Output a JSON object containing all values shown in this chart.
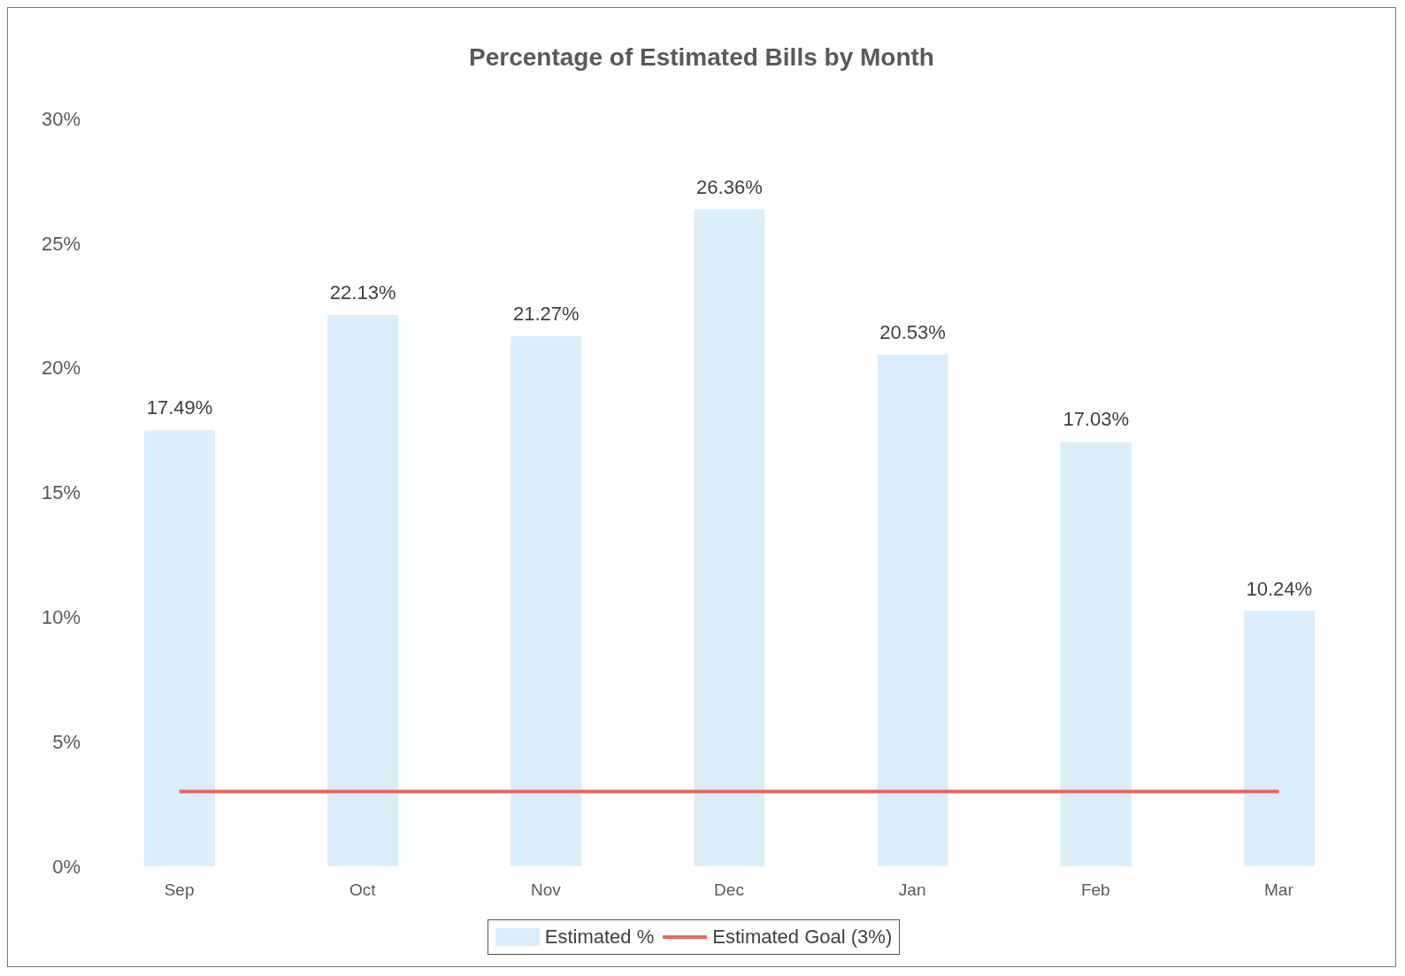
{
  "chart_data": {
    "type": "bar",
    "title": "Percentage of Estimated Bills by Month",
    "categories": [
      "Sep",
      "Oct",
      "Nov",
      "Dec",
      "Jan",
      "Feb",
      "Mar"
    ],
    "series": [
      {
        "name": "Estimated %",
        "color": "#dcedfa",
        "values": [
          17.49,
          22.13,
          21.27,
          26.36,
          20.53,
          17.03,
          10.24
        ],
        "value_labels": [
          "17.49%",
          "22.13%",
          "21.27%",
          "26.36%",
          "20.53%",
          "17.03%",
          "10.24%"
        ]
      },
      {
        "name": "Estimated Goal (3%)",
        "type": "line",
        "color": "#e8675e",
        "values": [
          3,
          3,
          3,
          3,
          3,
          3,
          3
        ]
      }
    ],
    "ylim": [
      0,
      30
    ],
    "yticks": [
      {
        "value": 0,
        "label": "0%"
      },
      {
        "value": 5,
        "label": "5%"
      },
      {
        "value": 10,
        "label": "10%"
      },
      {
        "value": 15,
        "label": "15%"
      },
      {
        "value": 20,
        "label": "20%"
      },
      {
        "value": 25,
        "label": "25%"
      },
      {
        "value": 30,
        "label": "30%"
      }
    ],
    "grid": false,
    "legend": "bottom",
    "marker": "none"
  }
}
